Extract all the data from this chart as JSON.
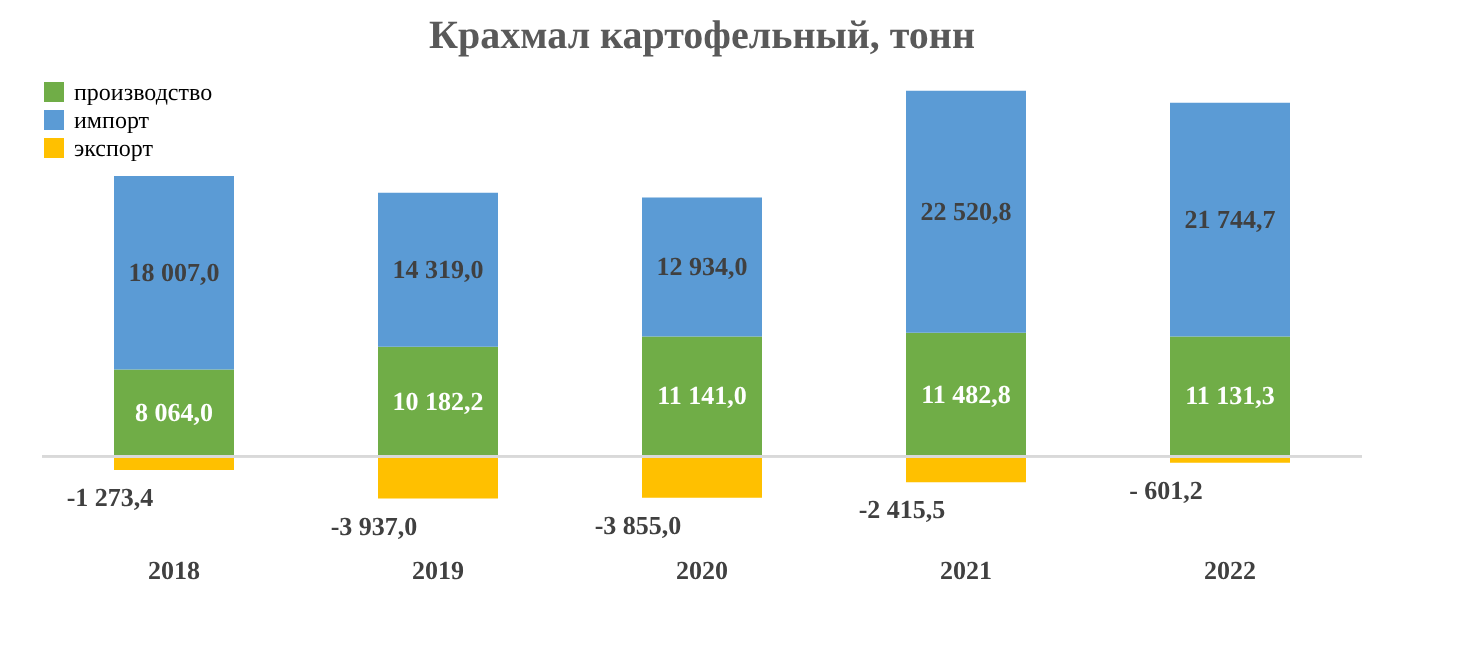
{
  "chart_data": {
    "type": "bar",
    "title": "Крахмал картофельный, тонн",
    "stacked": true,
    "legend": "top left",
    "grid": false,
    "categories": [
      "2018",
      "2019",
      "2020",
      "2021",
      "2022"
    ],
    "series": [
      {
        "name": "производство",
        "color": "#70ad47",
        "values": [
          8064.0,
          10182.2,
          11141.0,
          11482.8,
          11131.3
        ],
        "value_labels": [
          "8 064,0",
          "10 182,2",
          "11 141,0",
          "11 482,8",
          "11 131,3"
        ]
      },
      {
        "name": "импорт",
        "color": "#5b9bd5",
        "values": [
          18007.0,
          14319.0,
          12934.0,
          22520.8,
          21744.7
        ],
        "value_labels": [
          "18 007,0",
          "14 319,0",
          "12 934,0",
          "22 520,8",
          "21 744,7"
        ]
      },
      {
        "name": "экспорт",
        "color": "#ffc000",
        "values": [
          -1273.4,
          -3937.0,
          -3855.0,
          -2415.5,
          -601.2
        ],
        "value_labels": [
          "-1 273,4",
          "-3 937,0",
          "-3 855,0",
          "-2 415,5",
          "- 601,2"
        ]
      }
    ]
  }
}
